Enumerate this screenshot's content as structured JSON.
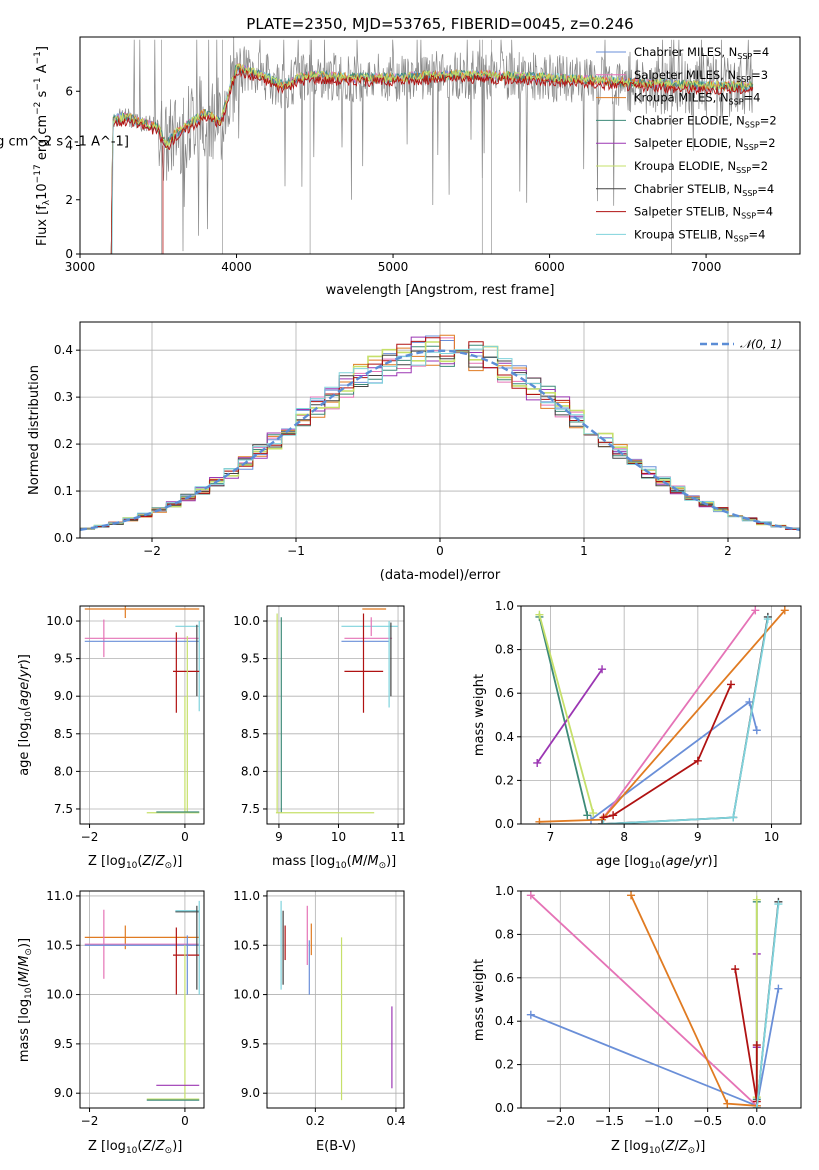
{
  "figure_title": "PLATE=2350, MJD=53765, FIBERID=0045, z=0.246",
  "colors": {
    "chabrier_miles": "#6a8fd8",
    "salpeter_miles": "#e573b6",
    "kroupa_miles": "#e07b22",
    "chabrier_elodie": "#3d8a78",
    "salpeter_elodie": "#9b36b3",
    "kroupa_elodie": "#c6e06a",
    "chabrier_stelib": "#444444",
    "salpeter_stelib": "#b01212",
    "kroupa_stelib": "#7fd3dc",
    "data": "#888888"
  },
  "legend": [
    {
      "label": "Chabrier MILES, N",
      "sub": "SSP",
      "val": "=4",
      "color": "#6a8fd8"
    },
    {
      "label": "Salpeter MILES, N",
      "sub": "SSP",
      "val": "=3",
      "color": "#e573b6"
    },
    {
      "label": "Kroupa MILES, N",
      "sub": "SSP",
      "val": "=4",
      "color": "#e07b22"
    },
    {
      "label": "Chabrier ELODIE, N",
      "sub": "SSP",
      "val": "=2",
      "color": "#3d8a78"
    },
    {
      "label": "Salpeter ELODIE, N",
      "sub": "SSP",
      "val": "=2",
      "color": "#9b36b3"
    },
    {
      "label": "Kroupa ELODIE, N",
      "sub": "SSP",
      "val": "=2",
      "color": "#c6e06a"
    },
    {
      "label": "Chabrier STELIB, N",
      "sub": "SSP",
      "val": "=4",
      "color": "#444444"
    },
    {
      "label": "Salpeter STELIB, N",
      "sub": "SSP",
      "val": "=4",
      "color": "#b01212"
    },
    {
      "label": "Kroupa STELIB, N",
      "sub": "SSP",
      "val": "=4",
      "color": "#7fd3dc"
    }
  ],
  "normal_label": "𝒩(0, 1)",
  "chart_data": [
    {
      "id": "spectrum",
      "type": "line",
      "xlabel": "wavelength [Angstrom, rest frame]",
      "ylabel": "Flux [f_λ 10^-17 erg cm^-2 s^-1 A^-1]",
      "xlim": [
        3000,
        7600
      ],
      "ylim": [
        0,
        8
      ],
      "xticks": [
        3000,
        4000,
        5000,
        6000,
        7000
      ],
      "yticks": [
        0,
        2,
        4,
        6
      ],
      "model_continuum": {
        "x": [
          3200,
          3210,
          3220,
          3300,
          3400,
          3500,
          3550,
          3600,
          3700,
          3800,
          3900,
          3950,
          4000,
          4100,
          4200,
          4300,
          4400,
          4500,
          4700,
          5000,
          5300,
          5600,
          6000,
          6300,
          6600,
          7000,
          7300
        ],
        "y": [
          0,
          4.9,
          5.0,
          5.05,
          4.85,
          4.65,
          4.0,
          4.4,
          4.8,
          5.2,
          4.9,
          5.9,
          6.9,
          6.7,
          6.5,
          6.2,
          6.5,
          6.6,
          6.5,
          6.5,
          6.6,
          6.6,
          6.5,
          6.4,
          6.3,
          6.2,
          6.2
        ]
      },
      "grid": false
    },
    {
      "id": "residuals",
      "type": "line",
      "xlabel": "(data-model)/error",
      "ylabel": "Normed distribution",
      "xlim": [
        -2.5,
        2.5
      ],
      "ylim": [
        0,
        0.46
      ],
      "xticks": [
        -2,
        -1,
        0,
        1,
        2
      ],
      "yticks": [
        0.0,
        0.1,
        0.2,
        0.3,
        0.4
      ],
      "series": [
        {
          "name": "𝒩(0, 1)",
          "style": "dashed"
        }
      ],
      "grid": true,
      "legend_position": "top-right"
    },
    {
      "id": "age_vs_Z",
      "type": "scatter",
      "xlabel": "Z [log10(Z/Z⊙)]",
      "ylabel": "age [log10(age/yr)]",
      "xlim": [
        -2.2,
        0.4
      ],
      "ylim": [
        7.3,
        10.2
      ],
      "xticks": [
        -2,
        0
      ],
      "yticks": [
        7.5,
        8.0,
        8.5,
        9.0,
        9.5,
        10.0
      ],
      "grid": true
    },
    {
      "id": "age_vs_mass",
      "type": "scatter",
      "xlabel": "mass [log10(M/M⊙)]",
      "ylabel": "",
      "xlim": [
        8.8,
        11.1
      ],
      "ylim": [
        7.3,
        10.2
      ],
      "xticks": [
        9,
        10,
        11
      ],
      "yticks": [
        7.5,
        8.0,
        8.5,
        9.0,
        9.5,
        10.0
      ],
      "grid": true
    },
    {
      "id": "weight_vs_age",
      "type": "line",
      "xlabel": "age [log10(age/yr)]",
      "ylabel": "mass weight",
      "xlim": [
        6.6,
        10.4
      ],
      "ylim": [
        0,
        1
      ],
      "xticks": [
        7,
        8,
        9,
        10
      ],
      "yticks": [
        0.0,
        0.2,
        0.4,
        0.6,
        0.8,
        1.0
      ],
      "grid": true,
      "series": [
        {
          "name": "Chabrier MILES",
          "x": [
            7.55,
            9.7,
            9.8
          ],
          "y": [
            0.02,
            0.56,
            0.43
          ]
        },
        {
          "name": "Salpeter MILES",
          "x": [
            7.7,
            9.78
          ],
          "y": [
            0.02,
            0.98
          ]
        },
        {
          "name": "Kroupa MILES",
          "x": [
            6.85,
            7.7,
            10.18
          ],
          "y": [
            0.01,
            0.02,
            0.98
          ]
        },
        {
          "name": "Chabrier ELODIE",
          "x": [
            6.85,
            7.5
          ],
          "y": [
            0.95,
            0.04
          ]
        },
        {
          "name": "Salpeter ELODIE",
          "x": [
            6.82,
            7.7
          ],
          "y": [
            0.28,
            0.71
          ]
        },
        {
          "name": "Kroupa ELODIE",
          "x": [
            6.85,
            7.58
          ],
          "y": [
            0.96,
            0.05
          ]
        },
        {
          "name": "Chabrier STELIB",
          "x": [
            7.7,
            9.48,
            9.95
          ],
          "y": [
            0.0,
            0.03,
            0.95
          ]
        },
        {
          "name": "Salpeter STELIB",
          "x": [
            7.72,
            7.85,
            9.0,
            9.45
          ],
          "y": [
            0.03,
            0.04,
            0.29,
            0.64
          ]
        },
        {
          "name": "Kroupa STELIB",
          "x": [
            7.72,
            9.48,
            9.95
          ],
          "y": [
            0.0,
            0.03,
            0.94
          ]
        }
      ]
    },
    {
      "id": "mass_vs_Z",
      "type": "scatter",
      "xlabel": "Z [log10(Z/Z⊙)]",
      "ylabel": "mass [log10(M/M⊙)]",
      "xlim": [
        -2.2,
        0.4
      ],
      "ylim": [
        8.85,
        11.05
      ],
      "xticks": [
        -2,
        0
      ],
      "yticks": [
        9.0,
        9.5,
        10.0,
        10.5,
        11.0
      ],
      "grid": true
    },
    {
      "id": "mass_vs_ebv",
      "type": "scatter",
      "xlabel": "E(B-V)",
      "ylabel": "",
      "xlim": [
        0.08,
        0.42
      ],
      "ylim": [
        8.85,
        11.05
      ],
      "xticks": [
        0.2,
        0.4
      ],
      "yticks": [
        9.0,
        9.5,
        10.0,
        10.5,
        11.0
      ],
      "grid": true
    },
    {
      "id": "weight_vs_Z",
      "type": "line",
      "xlabel": "Z [log10(Z/Z⊙)]",
      "ylabel": "mass weight",
      "xlim": [
        -2.4,
        0.45
      ],
      "ylim": [
        0,
        1
      ],
      "xticks": [
        -2.0,
        -1.5,
        -1.0,
        -0.5,
        0.0
      ],
      "yticks": [
        0.0,
        0.2,
        0.4,
        0.6,
        0.8,
        1.0
      ],
      "grid": true,
      "series": [
        {
          "name": "Chabrier MILES",
          "x": [
            -2.3,
            0.0,
            0.22
          ],
          "y": [
            0.43,
            0.01,
            0.55
          ]
        },
        {
          "name": "Salpeter MILES",
          "x": [
            -2.3,
            0.0
          ],
          "y": [
            0.98,
            0.01
          ]
        },
        {
          "name": "Kroupa MILES",
          "x": [
            -1.28,
            -0.3,
            0.0
          ],
          "y": [
            0.98,
            0.02,
            0.01
          ]
        },
        {
          "name": "Chabrier ELODIE",
          "x": [
            0.0,
            0.0
          ],
          "y": [
            0.95,
            0.04
          ]
        },
        {
          "name": "Salpeter ELODIE",
          "x": [
            0.0,
            0.0
          ],
          "y": [
            0.71,
            0.28
          ]
        },
        {
          "name": "Kroupa ELODIE",
          "x": [
            0.0,
            0.0
          ],
          "y": [
            0.96,
            0.05
          ]
        },
        {
          "name": "Chabrier STELIB",
          "x": [
            0.0,
            0.22
          ],
          "y": [
            0.0,
            0.95
          ]
        },
        {
          "name": "Salpeter STELIB",
          "x": [
            -0.22,
            0.0,
            0.0
          ],
          "y": [
            0.64,
            0.03,
            0.29
          ]
        },
        {
          "name": "Kroupa STELIB",
          "x": [
            0.0,
            0.22
          ],
          "y": [
            0.0,
            0.94
          ]
        }
      ]
    }
  ]
}
